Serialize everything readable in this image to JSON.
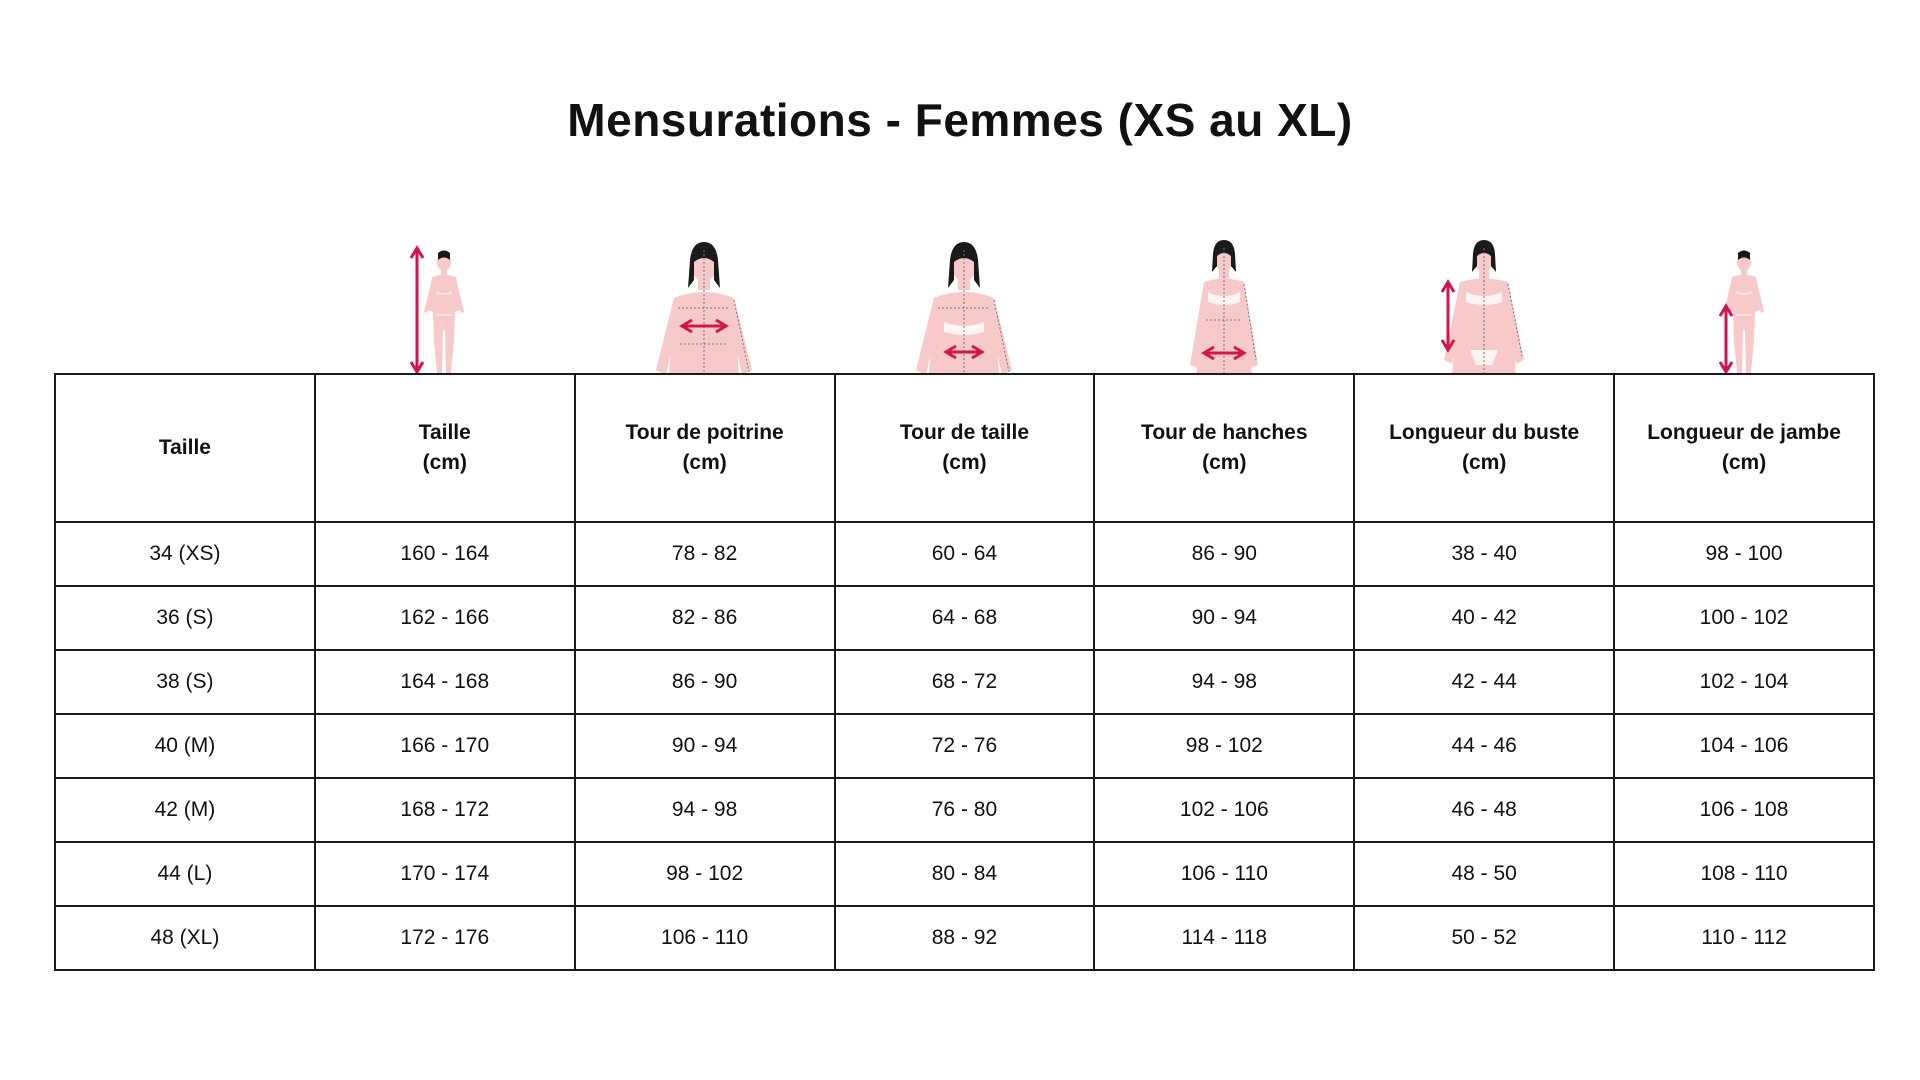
{
  "title": "Mensurations - Femmes (XS au XL)",
  "colors": {
    "accent": "#d0164a",
    "body_fill": "#f8c9c9",
    "hair": "#1a1a1a",
    "border": "#1a1a1a"
  },
  "illustrations": [
    {
      "icon": "",
      "figure": "none"
    },
    {
      "icon": "height-measure-icon",
      "figure": "full-body-small",
      "arrow": "vertical"
    },
    {
      "icon": "chest-measure-icon",
      "figure": "torso",
      "arrow": "horizontal-chest"
    },
    {
      "icon": "waist-measure-icon",
      "figure": "torso",
      "arrow": "horizontal-waist"
    },
    {
      "icon": "hips-measure-icon",
      "figure": "torso-narrow",
      "arrow": "horizontal-hips"
    },
    {
      "icon": "torso-length-measure-icon",
      "figure": "torso-wide",
      "arrow": "vertical-torso"
    },
    {
      "icon": "leg-length-measure-icon",
      "figure": "full-body-small",
      "arrow": "vertical-leg"
    }
  ],
  "table": {
    "headers": [
      {
        "line1": "Taille",
        "line2": ""
      },
      {
        "line1": "Taille",
        "line2": "(cm)"
      },
      {
        "line1": "Tour de poitrine",
        "line2": "(cm)"
      },
      {
        "line1": "Tour de taille",
        "line2": "(cm)"
      },
      {
        "line1": "Tour de hanches",
        "line2": "(cm)"
      },
      {
        "line1": "Longueur du buste",
        "line2": "(cm)"
      },
      {
        "line1": "Longueur de jambe",
        "line2": "(cm)"
      }
    ],
    "rows": [
      [
        "34 (XS)",
        "160 - 164",
        "78 - 82",
        "60 - 64",
        "86 - 90",
        "38 - 40",
        "98 - 100"
      ],
      [
        "36 (S)",
        "162 - 166",
        "82 - 86",
        "64 - 68",
        "90 - 94",
        "40 - 42",
        "100 - 102"
      ],
      [
        "38 (S)",
        "164 - 168",
        "86 - 90",
        "68 - 72",
        "94 - 98",
        "42 - 44",
        "102 - 104"
      ],
      [
        "40 (M)",
        "166 - 170",
        "90 - 94",
        "72 - 76",
        "98 - 102",
        "44 - 46",
        "104 - 106"
      ],
      [
        "42 (M)",
        "168 - 172",
        "94 - 98",
        "76 - 80",
        "102 - 106",
        "46 - 48",
        "106 - 108"
      ],
      [
        "44 (L)",
        "170 - 174",
        "98 - 102",
        "80 - 84",
        "106 - 110",
        "48 - 50",
        "108 - 110"
      ],
      [
        "48 (XL)",
        "172 - 176",
        "106 - 110",
        "88 - 92",
        "114 - 118",
        "50 - 52",
        "110 - 112"
      ]
    ]
  }
}
